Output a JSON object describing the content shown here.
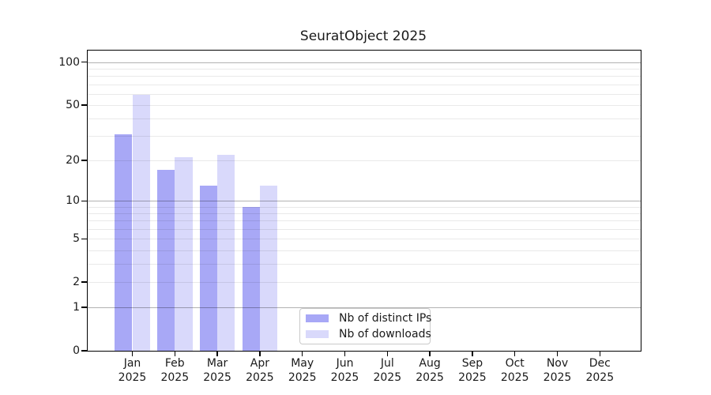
{
  "chart_data": {
    "type": "bar",
    "title": "SeuratObject 2025",
    "categories": [
      "Jan 2025",
      "Feb 2025",
      "Mar 2025",
      "Apr 2025",
      "May 2025",
      "Jun 2025",
      "Jul 2025",
      "Aug 2025",
      "Sep 2025",
      "Oct 2025",
      "Nov 2025",
      "Dec 2025"
    ],
    "series": [
      {
        "name": "Nb of distinct IPs",
        "color": "#a8a8f6",
        "values": [
          31,
          17,
          13,
          9,
          null,
          null,
          null,
          null,
          null,
          null,
          null,
          null
        ]
      },
      {
        "name": "Nb of downloads",
        "color": "#d9d9fb",
        "values": [
          59,
          21,
          22,
          13,
          null,
          null,
          null,
          null,
          null,
          null,
          null,
          null
        ]
      }
    ],
    "xlabel": "",
    "ylabel": "",
    "y_scale": "log1p",
    "ylim": [
      0,
      121
    ],
    "y_ticks": [
      0,
      1,
      2,
      5,
      10,
      20,
      50,
      100
    ],
    "y_gridlines_major": [
      1,
      10,
      100
    ],
    "y_gridlines_minor": [
      2,
      3,
      4,
      5,
      6,
      7,
      8,
      9,
      20,
      30,
      40,
      50,
      60,
      70,
      80,
      90
    ],
    "grid": "on",
    "legend_position": "lower-center-right"
  },
  "colors": {
    "axis": "#000000",
    "text": "#1a1a1a",
    "grid_major": "#b3b3b3",
    "grid_minor": "#ebebeb",
    "background": "#ffffff"
  }
}
